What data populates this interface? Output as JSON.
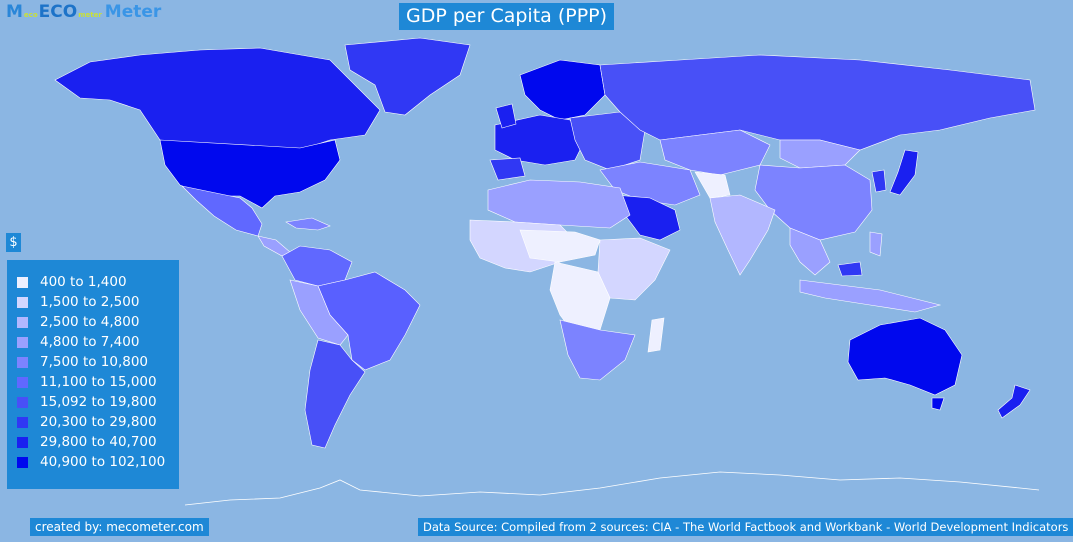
{
  "brand": {
    "pre": "M",
    "small1": "eco",
    "eco": "ECO",
    "small2": "meter",
    "rest": "Meter"
  },
  "title": "GDP per Capita (PPP)",
  "unit": "$",
  "legend": [
    {
      "label": "400 to 1,400",
      "color": "#eef0ff"
    },
    {
      "label": "1,500 to 2,500",
      "color": "#d3d6ff"
    },
    {
      "label": "2,500 to 4,800",
      "color": "#b2b7ff"
    },
    {
      "label": "4,800 to 7,400",
      "color": "#9aa0ff"
    },
    {
      "label": "7,500 to 10,800",
      "color": "#7c83ff"
    },
    {
      "label": "11,100 to 15,000",
      "color": "#6068ff"
    },
    {
      "label": "15,092 to 19,800",
      "color": "#4850f7"
    },
    {
      "label": "20,300 to 29,800",
      "color": "#3038f4"
    },
    {
      "label": "29,800 to 40,700",
      "color": "#1a20f0"
    },
    {
      "label": "40,900 to 102,100",
      "color": "#0008ee"
    }
  ],
  "credit": "created by: mecometer.com",
  "source": "Data Source: Compiled from 2 sources: CIA - The World Factbook and Workbank - World Development Indicators",
  "colors": {
    "ocean": "#8bb6e3",
    "panel": "#1e88d6"
  }
}
